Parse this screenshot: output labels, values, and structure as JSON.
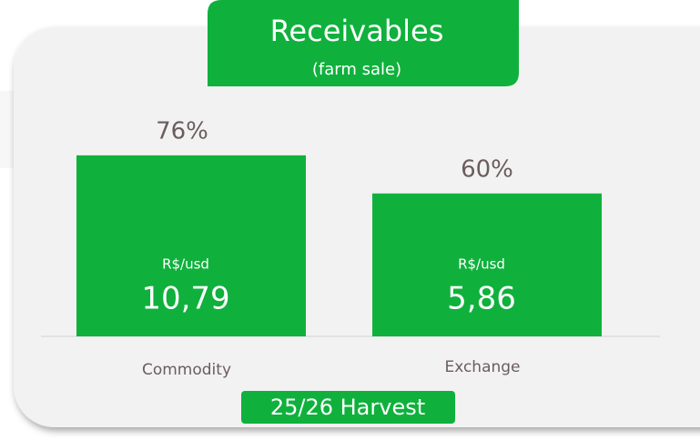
{
  "chart_data": {
    "type": "bar",
    "title": "Receivables",
    "subtitle": "(farm sale)",
    "categories": [
      "Commodity",
      "Exchange"
    ],
    "values": [
      76,
      60
    ],
    "value_labels": [
      "76%",
      "60%"
    ],
    "rate_unit": "R$/usd",
    "rate_labels": [
      "10,79",
      "5,86"
    ],
    "color": "#0fb13c",
    "ylim": [
      0,
      100
    ],
    "annotation": "25/26 Harvest"
  }
}
